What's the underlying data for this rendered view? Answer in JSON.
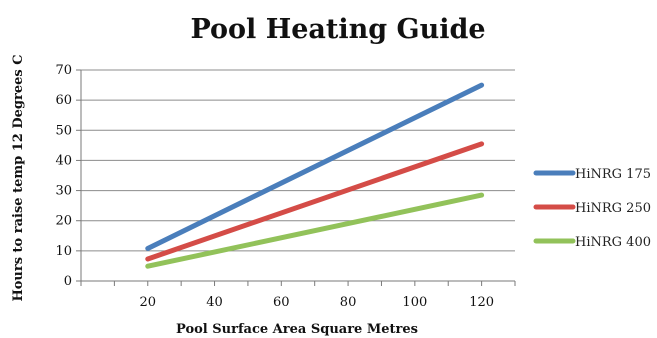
{
  "chart_data": {
    "type": "line",
    "title": "Pool Heating Guide",
    "xlabel": "Pool Surface Area Square Metres",
    "ylabel": "Hours to raise temp 12 Degrees C",
    "x": [
      20,
      120
    ],
    "xticks": [
      20,
      40,
      60,
      80,
      100,
      120
    ],
    "yticks": [
      0,
      10,
      20,
      30,
      40,
      50,
      60,
      70
    ],
    "xlim": [
      0,
      130
    ],
    "ylim": [
      0,
      70
    ],
    "grid": true,
    "legend_position": "right",
    "series": [
      {
        "name": "HiNRG 175",
        "color": "#4a7ebb",
        "values": [
          10.8,
          65
        ]
      },
      {
        "name": "HiNRG 250",
        "color": "#d44c47",
        "values": [
          7.3,
          45.5
        ]
      },
      {
        "name": "HiNRG 400",
        "color": "#92c25a",
        "values": [
          4.9,
          28.5
        ]
      }
    ]
  }
}
